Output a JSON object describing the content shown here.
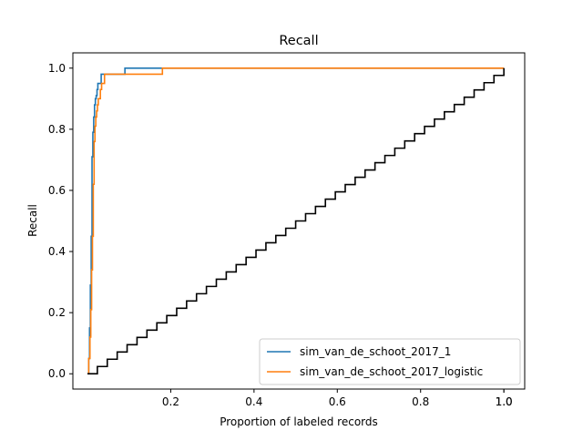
{
  "chart_data": {
    "type": "line",
    "title": "Recall",
    "xlabel": "Proportion of labeled records",
    "ylabel": "Recall",
    "xlim": [
      -0.035,
      1.05
    ],
    "ylim": [
      -0.05,
      1.05
    ],
    "xticks": [
      {
        "value": 0.2,
        "label": "0.2"
      },
      {
        "value": 0.4,
        "label": "0.4"
      },
      {
        "value": 0.6,
        "label": "0.6"
      },
      {
        "value": 0.8,
        "label": "0.8"
      },
      {
        "value": 1.0,
        "label": "1.0"
      }
    ],
    "xticks_extra": [
      {
        "value": 1.0,
        "label": "1.0"
      }
    ],
    "yticks": [
      {
        "value": 0.0,
        "label": "0.0"
      },
      {
        "value": 0.2,
        "label": "0.2"
      },
      {
        "value": 0.4,
        "label": "0.4"
      },
      {
        "value": 0.6,
        "label": "0.6"
      },
      {
        "value": 0.8,
        "label": "0.8"
      },
      {
        "value": 1.0,
        "label": "1.0"
      }
    ],
    "legend_position": "lower-right",
    "series": [
      {
        "name": "sim_van_de_schoot_2017_1",
        "color": "#1f77b4",
        "in_legend": true,
        "x": [
          0.0,
          0.003,
          0.005,
          0.007,
          0.009,
          0.011,
          0.013,
          0.015,
          0.017,
          0.019,
          0.021,
          0.023,
          0.025,
          0.027,
          0.03,
          0.033,
          0.036,
          0.04,
          0.045,
          0.06,
          0.09,
          0.18,
          0.4,
          1.0
        ],
        "y": [
          0.0,
          0.05,
          0.15,
          0.29,
          0.45,
          0.71,
          0.79,
          0.84,
          0.88,
          0.9,
          0.91,
          0.93,
          0.95,
          0.95,
          0.95,
          0.98,
          0.98,
          0.98,
          0.98,
          0.98,
          1.0,
          1.0,
          1.0,
          1.0
        ]
      },
      {
        "name": "sim_van_de_schoot_2017_logistic",
        "color": "#ff7f0e",
        "in_legend": true,
        "x": [
          0.0,
          0.003,
          0.006,
          0.008,
          0.01,
          0.012,
          0.014,
          0.016,
          0.018,
          0.02,
          0.022,
          0.024,
          0.026,
          0.028,
          0.031,
          0.034,
          0.037,
          0.041,
          0.046,
          0.06,
          0.09,
          0.18,
          0.4,
          1.0
        ],
        "y": [
          0.0,
          0.05,
          0.12,
          0.21,
          0.34,
          0.45,
          0.62,
          0.76,
          0.81,
          0.84,
          0.86,
          0.88,
          0.9,
          0.9,
          0.93,
          0.95,
          0.95,
          0.98,
          0.98,
          0.98,
          0.98,
          1.0,
          1.0,
          1.0
        ]
      },
      {
        "name": "random baseline",
        "color": "#000000",
        "in_legend": false,
        "steps": 42,
        "x_start": 0.0,
        "x_end": 1.0,
        "y_start": 0.0,
        "y_end": 1.0
      }
    ]
  }
}
